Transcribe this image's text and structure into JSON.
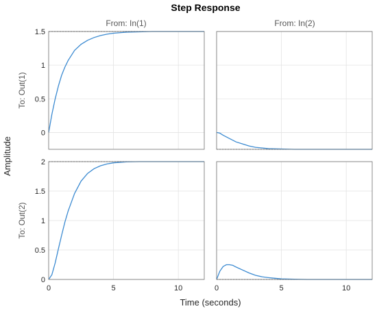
{
  "chart_data": {
    "type": "line",
    "title": "Step Response",
    "xlabel": "Time (seconds)",
    "ylabel": "Amplitude",
    "grid": true,
    "line_color": "#3b8ad1",
    "columns": [
      "From: In(1)",
      "From: In(2)"
    ],
    "rows": [
      "To: Out(1)",
      "To: Out(2)"
    ],
    "xlim": [
      0,
      12
    ],
    "xticks": [
      0,
      5,
      10
    ],
    "panels": [
      {
        "row": 0,
        "col": 0,
        "ylim": [
          -0.25,
          1.5
        ],
        "yticks": [
          0,
          0.5,
          1,
          1.5
        ],
        "steady_state": 1.5,
        "x": [
          0,
          0.25,
          0.5,
          0.75,
          1,
          1.25,
          1.5,
          2,
          2.5,
          3,
          3.5,
          4,
          4.5,
          5,
          6,
          7,
          8,
          9,
          10,
          11,
          12
        ],
        "y": [
          0,
          0.27,
          0.5,
          0.69,
          0.85,
          0.97,
          1.07,
          1.22,
          1.31,
          1.37,
          1.41,
          1.44,
          1.46,
          1.475,
          1.49,
          1.495,
          1.5,
          1.5,
          1.5,
          1.5,
          1.5
        ]
      },
      {
        "row": 0,
        "col": 1,
        "ylim": [
          -0.25,
          1.5
        ],
        "yticks": [
          0,
          0.5,
          1,
          1.5
        ],
        "steady_state": -0.25,
        "x": [
          0,
          0.25,
          0.5,
          1,
          1.5,
          2,
          2.5,
          3,
          3.5,
          4,
          5,
          6,
          7,
          8,
          10,
          12
        ],
        "y": [
          0,
          -0.01,
          -0.04,
          -0.09,
          -0.14,
          -0.17,
          -0.2,
          -0.22,
          -0.23,
          -0.24,
          -0.245,
          -0.25,
          -0.25,
          -0.25,
          -0.25,
          -0.25
        ]
      },
      {
        "row": 1,
        "col": 0,
        "ylim": [
          0,
          2
        ],
        "yticks": [
          0,
          0.5,
          1,
          1.5,
          2
        ],
        "steady_state": 2,
        "x": [
          0,
          0.25,
          0.5,
          0.75,
          1,
          1.25,
          1.5,
          2,
          2.5,
          3,
          3.5,
          4,
          4.5,
          5,
          6,
          7,
          8,
          9,
          10,
          11,
          12
        ],
        "y": [
          0,
          0.08,
          0.28,
          0.52,
          0.75,
          0.97,
          1.16,
          1.46,
          1.67,
          1.8,
          1.88,
          1.93,
          1.96,
          1.98,
          1.995,
          2,
          2,
          2,
          2,
          2,
          2
        ]
      },
      {
        "row": 1,
        "col": 1,
        "ylim": [
          0,
          2
        ],
        "yticks": [
          0,
          0.5,
          1,
          1.5,
          2
        ],
        "steady_state": 0,
        "x": [
          0,
          0.25,
          0.5,
          0.75,
          1,
          1.25,
          1.5,
          2,
          2.5,
          3,
          3.5,
          4,
          4.5,
          5,
          6,
          7,
          8,
          10,
          12
        ],
        "y": [
          0,
          0.14,
          0.22,
          0.25,
          0.25,
          0.24,
          0.21,
          0.16,
          0.11,
          0.07,
          0.045,
          0.03,
          0.02,
          0.01,
          0.003,
          0,
          0,
          0,
          0
        ]
      }
    ]
  }
}
